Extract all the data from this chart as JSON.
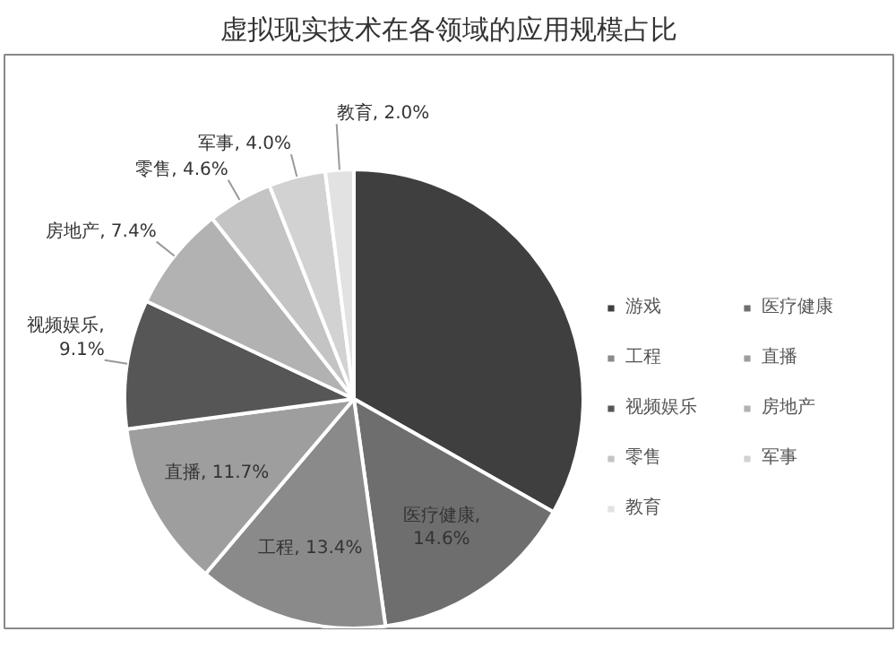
{
  "chart_data": {
    "type": "pie",
    "title": "虚拟现实技术在各领域的应用规模占比",
    "categories": [
      "游戏",
      "医疗健康",
      "工程",
      "直播",
      "视频娱乐",
      "房地产",
      "零售",
      "军事",
      "教育"
    ],
    "values": [
      33.2,
      14.6,
      13.4,
      11.7,
      9.1,
      7.4,
      4.6,
      4.0,
      2.0
    ],
    "colors": [
      "#3f3f3f",
      "#6e6e6e",
      "#8a8a8a",
      "#9e9e9e",
      "#565656",
      "#b2b2b2",
      "#c4c4c4",
      "#d2d2d2",
      "#e2e2e2"
    ],
    "value_labels": [
      null,
      "医疗健康, 14.6%",
      "工程, 13.4%",
      "直播, 11.7%",
      "视频娱乐, 9.1%",
      "房地产, 7.4%",
      "零售, 4.6%",
      "军事, 4.0%",
      "教育, 2.0%"
    ],
    "legend": "right"
  }
}
